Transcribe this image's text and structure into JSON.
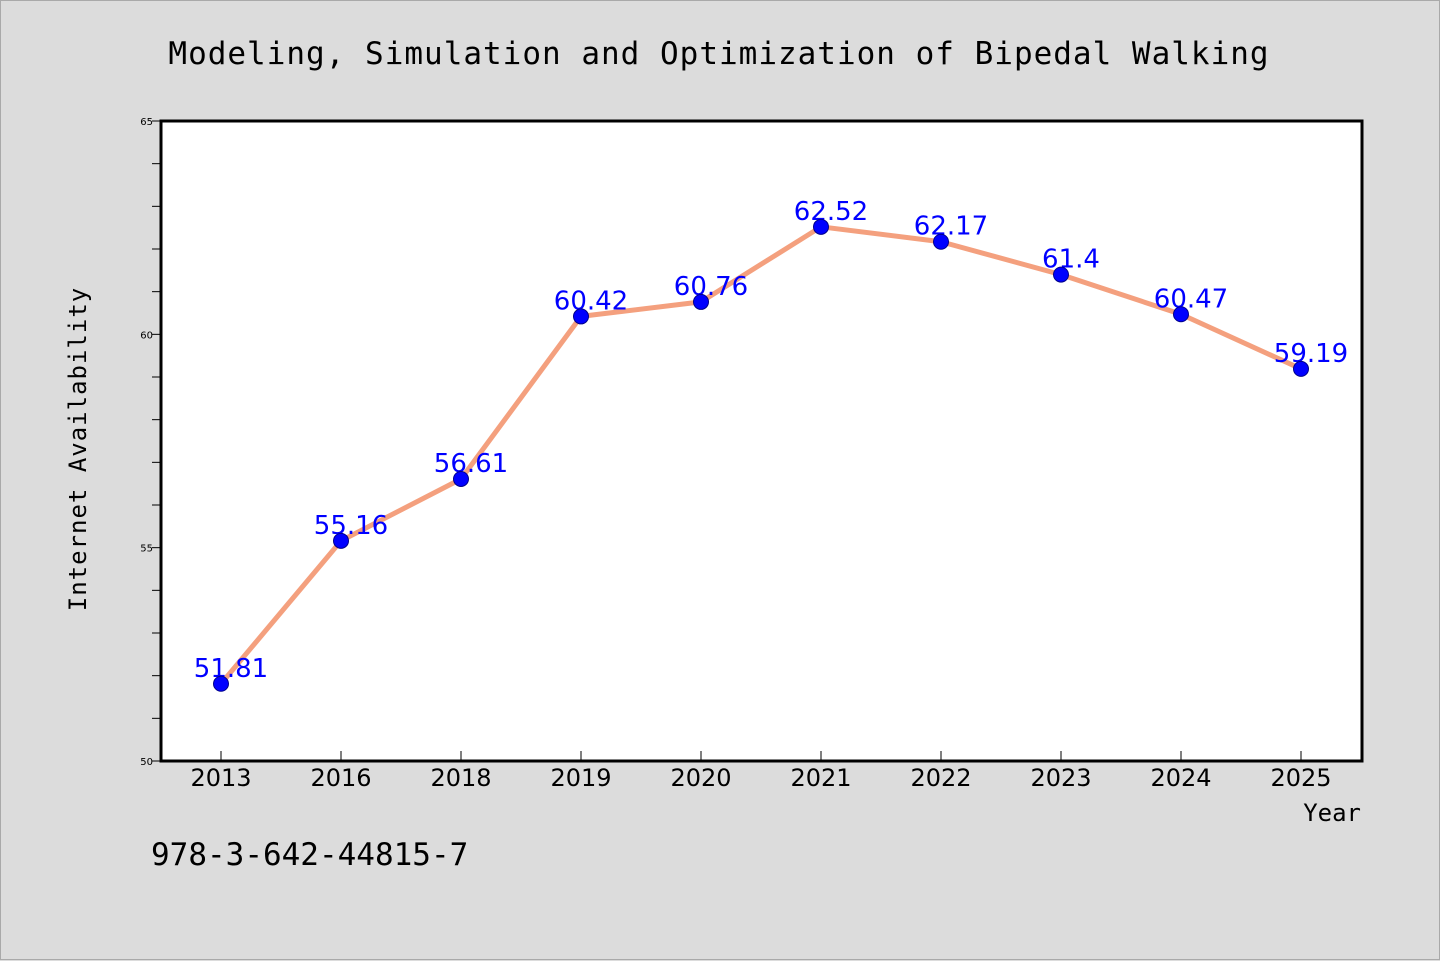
{
  "chart_data": {
    "type": "line",
    "title": "Modeling, Simulation and Optimization of Bipedal Walking",
    "xlabel": "Year",
    "ylabel": "Internet Availability",
    "categories": [
      "2013",
      "2016",
      "2018",
      "2019",
      "2020",
      "2021",
      "2022",
      "2023",
      "2024",
      "2025"
    ],
    "series": [
      {
        "values": [
          51.81,
          55.16,
          56.61,
          60.42,
          60.76,
          62.52,
          62.17,
          61.4,
          60.47,
          59.19
        ],
        "labels": [
          "51.81",
          "55.16",
          "56.61",
          "60.42",
          "60.76",
          "62.52",
          "62.17",
          "61.4",
          "60.47",
          "59.19"
        ],
        "line_color": "#f4a07e",
        "marker_color": "#0000ff"
      }
    ],
    "ylim": [
      50,
      65
    ],
    "yticks": [
      "50",
      "55",
      "60",
      "65"
    ],
    "grid": false,
    "legend": "none"
  },
  "footer": {
    "isbn": "978-3-642-44815-7"
  }
}
